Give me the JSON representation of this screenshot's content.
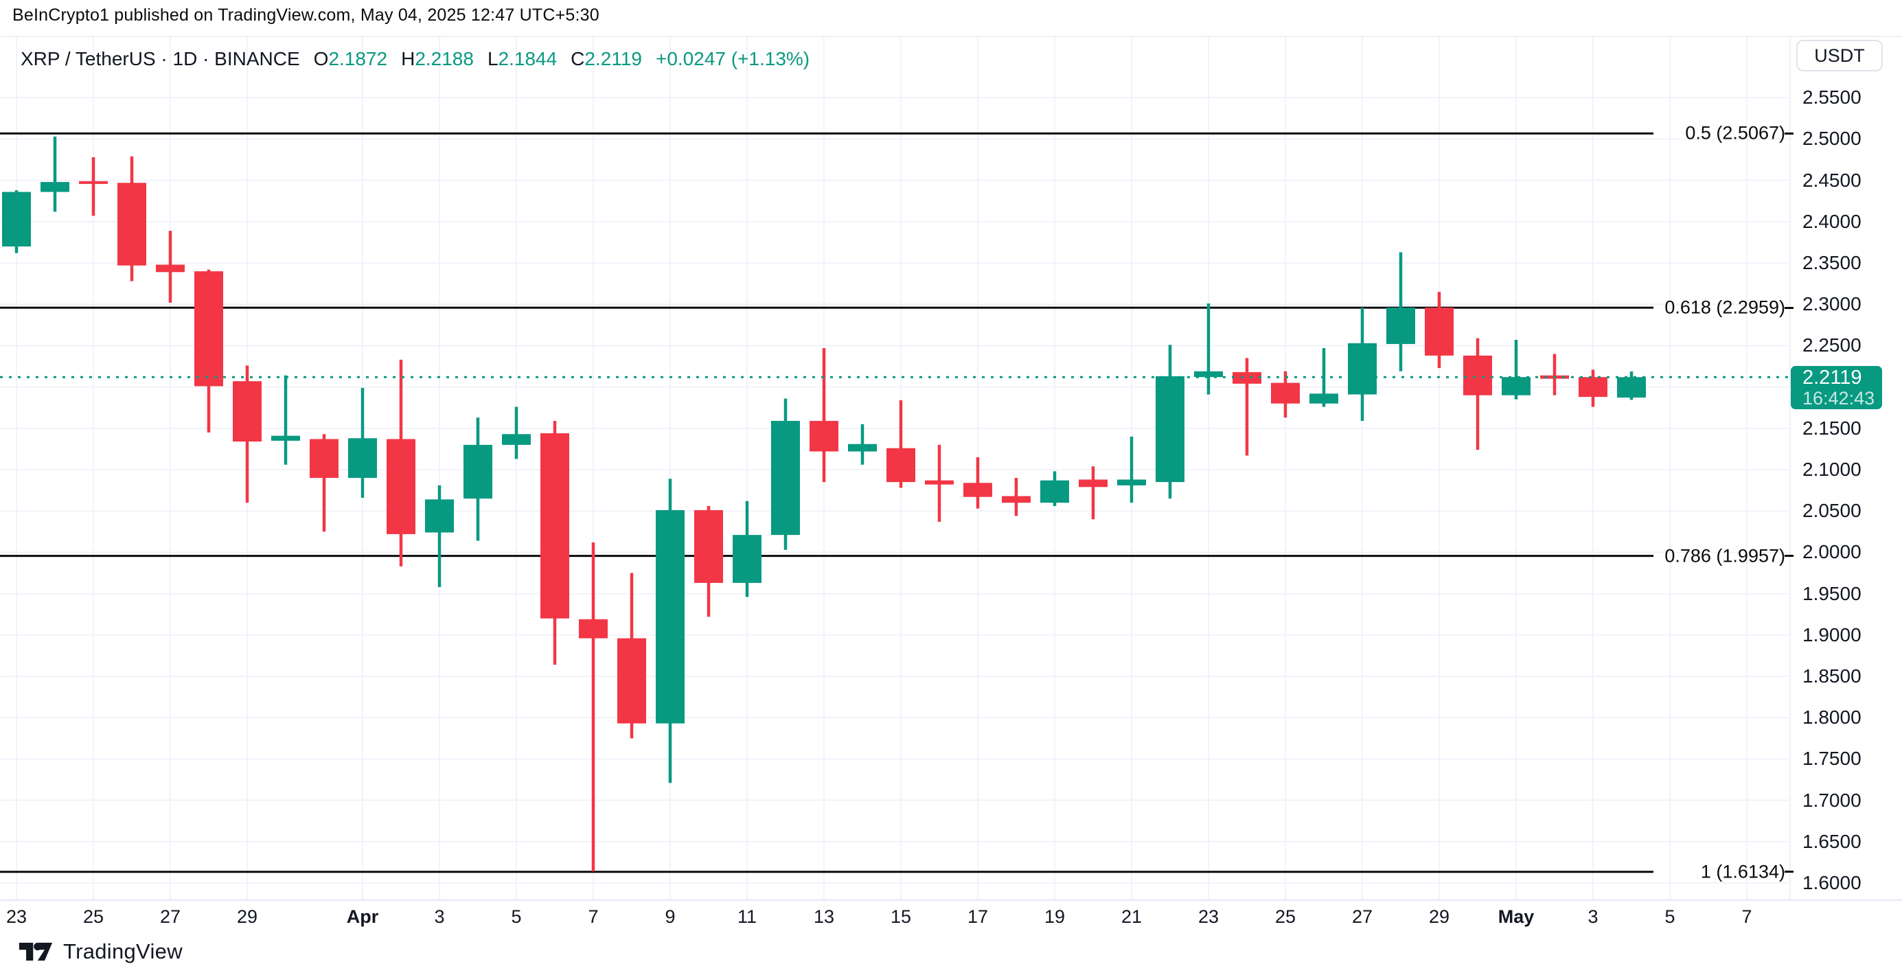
{
  "attribution": "BeInCrypto1 published on TradingView.com, May 04, 2025 12:47 UTC+5:30",
  "legend": {
    "title": "XRP / TetherUS · 1D · BINANCE",
    "ohlc": [
      {
        "label": "O",
        "value": "2.1872"
      },
      {
        "label": "H",
        "value": "2.2188"
      },
      {
        "label": "L",
        "value": "2.1844"
      },
      {
        "label": "C",
        "value": "2.2119"
      }
    ],
    "change": "+0.0247 (+1.13%)"
  },
  "currency_button": "USDT",
  "price_badge": {
    "price": "2.2119",
    "countdown": "16:42:43"
  },
  "watermark": "TradingView",
  "colors": {
    "up": "#089981",
    "down": "#f23645",
    "grid": "#f0f3fa",
    "text": "#131722",
    "fib_line": "#0b0b0b",
    "axis_border": "#e0e3eb",
    "background": "#ffffff"
  },
  "chart_data": {
    "type": "candlestick",
    "title": "XRP / TetherUS · 1D · BINANCE",
    "symbol": "XRP/USDT",
    "interval": "1D",
    "exchange": "BINANCE",
    "current_ohlc": {
      "open": 2.1872,
      "high": 2.2188,
      "low": 2.1844,
      "close": 2.2119,
      "change_abs": "+0.0247",
      "change_pct": "+1.13%"
    },
    "current_price": {
      "value": 2.2119,
      "countdown": "16:42:43"
    },
    "grid": true,
    "y_axis": {
      "min": 1.58,
      "max": 2.625,
      "tick_step": 0.05,
      "ticks": [
        "2.5500",
        "2.5000",
        "2.4500",
        "2.4000",
        "2.3500",
        "2.3000",
        "2.2500",
        "2.1500",
        "2.1000",
        "2.0500",
        "2.0000",
        "1.9500",
        "1.9000",
        "1.8500",
        "1.8000",
        "1.7500",
        "1.7000",
        "1.6500",
        "1.6000"
      ]
    },
    "x_axis": {
      "ticks": [
        {
          "i": 0,
          "label": "23"
        },
        {
          "i": 2,
          "label": "25"
        },
        {
          "i": 4,
          "label": "27"
        },
        {
          "i": 6,
          "label": "29"
        },
        {
          "i": 9,
          "label": "Apr",
          "bold": true
        },
        {
          "i": 11,
          "label": "3"
        },
        {
          "i": 13,
          "label": "5"
        },
        {
          "i": 15,
          "label": "7"
        },
        {
          "i": 17,
          "label": "9"
        },
        {
          "i": 19,
          "label": "11"
        },
        {
          "i": 21,
          "label": "13"
        },
        {
          "i": 23,
          "label": "15"
        },
        {
          "i": 25,
          "label": "17"
        },
        {
          "i": 27,
          "label": "19"
        },
        {
          "i": 29,
          "label": "21"
        },
        {
          "i": 31,
          "label": "23"
        },
        {
          "i": 33,
          "label": "25"
        },
        {
          "i": 35,
          "label": "27"
        },
        {
          "i": 37,
          "label": "29"
        },
        {
          "i": 39,
          "label": "May",
          "bold": true
        },
        {
          "i": 41,
          "label": "3"
        },
        {
          "i": 43,
          "label": "5"
        },
        {
          "i": 45,
          "label": "7"
        }
      ]
    },
    "fib_levels": [
      {
        "label": "0.5 (2.5067)",
        "ratio": "0.5",
        "price": 2.5067
      },
      {
        "label": "0.618 (2.2959)",
        "ratio": "0.618",
        "price": 2.2959
      },
      {
        "label": "0.786 (1.9957)",
        "ratio": "0.786",
        "price": 1.9957
      },
      {
        "label": "1 (1.6134)",
        "ratio": "1",
        "price": 1.6134
      }
    ],
    "candles": [
      {
        "t": "Mar 23",
        "o": 2.37,
        "h": 2.438,
        "l": 2.362,
        "c": 2.436
      },
      {
        "t": "Mar 24",
        "o": 2.436,
        "h": 2.503,
        "l": 2.412,
        "c": 2.448
      },
      {
        "t": "Mar 25",
        "o": 2.449,
        "h": 2.478,
        "l": 2.407,
        "c": 2.447
      },
      {
        "t": "Mar 26",
        "o": 2.447,
        "h": 2.479,
        "l": 2.328,
        "c": 2.347
      },
      {
        "t": "Mar 27",
        "o": 2.348,
        "h": 2.389,
        "l": 2.302,
        "c": 2.339
      },
      {
        "t": "Mar 28",
        "o": 2.34,
        "h": 2.342,
        "l": 2.145,
        "c": 2.201
      },
      {
        "t": "Mar 29",
        "o": 2.207,
        "h": 2.226,
        "l": 2.06,
        "c": 2.134
      },
      {
        "t": "Mar 30",
        "o": 2.135,
        "h": 2.214,
        "l": 2.106,
        "c": 2.141
      },
      {
        "t": "Mar 31",
        "o": 2.137,
        "h": 2.143,
        "l": 2.025,
        "c": 2.09
      },
      {
        "t": "Apr 1",
        "o": 2.09,
        "h": 2.199,
        "l": 2.066,
        "c": 2.138
      },
      {
        "t": "Apr 2",
        "o": 2.137,
        "h": 2.233,
        "l": 1.983,
        "c": 2.022
      },
      {
        "t": "Apr 3",
        "o": 2.024,
        "h": 2.081,
        "l": 1.958,
        "c": 2.064
      },
      {
        "t": "Apr 4",
        "o": 2.065,
        "h": 2.163,
        "l": 2.014,
        "c": 2.13
      },
      {
        "t": "Apr 5",
        "o": 2.13,
        "h": 2.176,
        "l": 2.113,
        "c": 2.143
      },
      {
        "t": "Apr 6",
        "o": 2.144,
        "h": 2.159,
        "l": 1.864,
        "c": 1.92
      },
      {
        "t": "Apr 7",
        "o": 1.919,
        "h": 2.012,
        "l": 1.614,
        "c": 1.896
      },
      {
        "t": "Apr 8",
        "o": 1.896,
        "h": 1.975,
        "l": 1.775,
        "c": 1.793
      },
      {
        "t": "Apr 9",
        "o": 1.793,
        "h": 2.089,
        "l": 1.721,
        "c": 2.051
      },
      {
        "t": "Apr 10",
        "o": 2.051,
        "h": 2.056,
        "l": 1.922,
        "c": 1.963
      },
      {
        "t": "Apr 11",
        "o": 1.963,
        "h": 2.062,
        "l": 1.946,
        "c": 2.021
      },
      {
        "t": "Apr 12",
        "o": 2.021,
        "h": 2.186,
        "l": 2.003,
        "c": 2.159
      },
      {
        "t": "Apr 13",
        "o": 2.159,
        "h": 2.247,
        "l": 2.085,
        "c": 2.122
      },
      {
        "t": "Apr 14",
        "o": 2.122,
        "h": 2.155,
        "l": 2.106,
        "c": 2.131
      },
      {
        "t": "Apr 15",
        "o": 2.126,
        "h": 2.184,
        "l": 2.078,
        "c": 2.085
      },
      {
        "t": "Apr 16",
        "o": 2.087,
        "h": 2.13,
        "l": 2.037,
        "c": 2.082
      },
      {
        "t": "Apr 17",
        "o": 2.084,
        "h": 2.115,
        "l": 2.053,
        "c": 2.067
      },
      {
        "t": "Apr 18",
        "o": 2.068,
        "h": 2.09,
        "l": 2.044,
        "c": 2.06
      },
      {
        "t": "Apr 19",
        "o": 2.06,
        "h": 2.098,
        "l": 2.056,
        "c": 2.087
      },
      {
        "t": "Apr 20",
        "o": 2.088,
        "h": 2.104,
        "l": 2.04,
        "c": 2.079
      },
      {
        "t": "Apr 21",
        "o": 2.081,
        "h": 2.14,
        "l": 2.06,
        "c": 2.088
      },
      {
        "t": "Apr 22",
        "o": 2.085,
        "h": 2.251,
        "l": 2.065,
        "c": 2.213
      },
      {
        "t": "Apr 23",
        "o": 2.212,
        "h": 2.301,
        "l": 2.191,
        "c": 2.219
      },
      {
        "t": "Apr 24",
        "o": 2.218,
        "h": 2.235,
        "l": 2.117,
        "c": 2.204
      },
      {
        "t": "Apr 25",
        "o": 2.205,
        "h": 2.219,
        "l": 2.163,
        "c": 2.18
      },
      {
        "t": "Apr 26",
        "o": 2.18,
        "h": 2.247,
        "l": 2.176,
        "c": 2.192
      },
      {
        "t": "Apr 27",
        "o": 2.191,
        "h": 2.296,
        "l": 2.159,
        "c": 2.253
      },
      {
        "t": "Apr 28",
        "o": 2.252,
        "h": 2.363,
        "l": 2.219,
        "c": 2.296
      },
      {
        "t": "Apr 29",
        "o": 2.296,
        "h": 2.315,
        "l": 2.223,
        "c": 2.238
      },
      {
        "t": "Apr 30",
        "o": 2.238,
        "h": 2.259,
        "l": 2.124,
        "c": 2.19
      },
      {
        "t": "May 1",
        "o": 2.19,
        "h": 2.257,
        "l": 2.185,
        "c": 2.212
      },
      {
        "t": "May 2",
        "o": 2.214,
        "h": 2.24,
        "l": 2.19,
        "c": 2.21
      },
      {
        "t": "May 3",
        "o": 2.212,
        "h": 2.221,
        "l": 2.176,
        "c": 2.188
      },
      {
        "t": "May 4",
        "o": 2.1872,
        "h": 2.2188,
        "l": 2.1844,
        "c": 2.2119
      }
    ]
  }
}
